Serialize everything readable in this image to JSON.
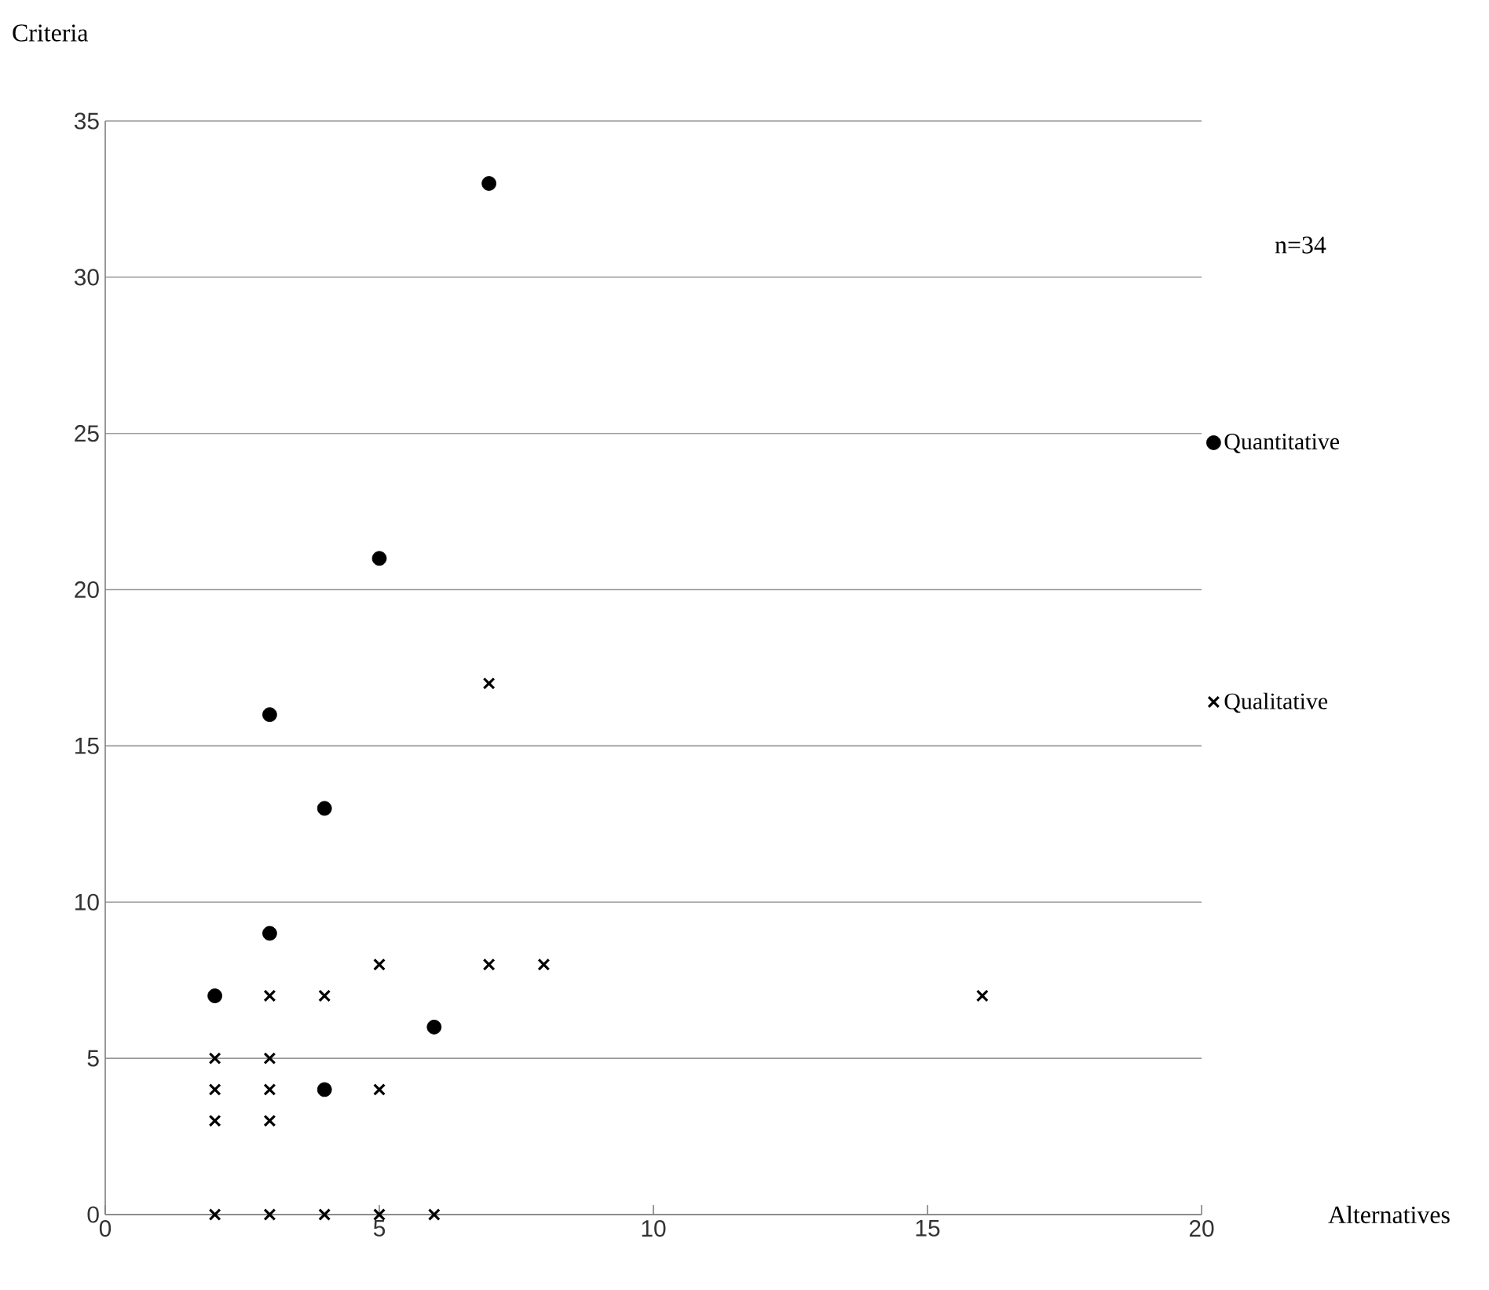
{
  "chart_data": {
    "type": "scatter",
    "xlabel": "Alternatives",
    "ylabel": "Criteria",
    "annotations": [
      "n=34"
    ],
    "xlim": [
      0,
      20
    ],
    "xticks": [
      0,
      5,
      10,
      15,
      20
    ],
    "ylim": [
      0,
      35
    ],
    "yticks": [
      0,
      5,
      10,
      15,
      20,
      25,
      30,
      35
    ],
    "grid": "y",
    "legend": "right",
    "series": [
      {
        "name": "Quantitative",
        "color": "#000000",
        "marker": "circle",
        "x": [
          7,
          5,
          3,
          4,
          3,
          2,
          6,
          4
        ],
        "values": [
          33,
          21,
          16,
          13,
          9,
          7,
          6,
          4
        ]
      },
      {
        "name": "Qualitative",
        "color": "#000000",
        "marker": "cross",
        "x": [
          7,
          5,
          7,
          8,
          16,
          3,
          4,
          2,
          3,
          2,
          3,
          4,
          5,
          2,
          3,
          2,
          3,
          4,
          5,
          6
        ],
        "values": [
          17,
          8,
          8,
          8,
          7,
          7,
          7,
          5,
          5,
          4,
          4,
          4,
          4,
          3,
          3,
          0,
          0,
          0,
          0,
          0
        ]
      }
    ]
  }
}
